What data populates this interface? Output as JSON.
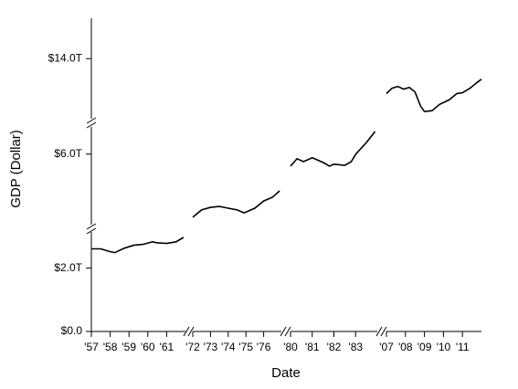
{
  "chart_data": {
    "type": "line",
    "x_label": "Date",
    "y_label": "GDP (Dollar)",
    "xlim": [
      [
        1957,
        1962
      ],
      [
        1972,
        1977
      ],
      [
        1980,
        1984
      ],
      [
        2007,
        2012
      ]
    ],
    "ylim": [
      [
        0,
        3.2
      ],
      [
        3.5,
        7.0
      ],
      [
        12.6,
        14.9
      ]
    ],
    "xticks": [
      {
        "value": 1957,
        "label": "'57"
      },
      {
        "value": 1958,
        "label": "'58"
      },
      {
        "value": 1959,
        "label": "'59"
      },
      {
        "value": 1960,
        "label": "'60"
      },
      {
        "value": 1961,
        "label": "'61"
      },
      {
        "value": 1972,
        "label": "'72"
      },
      {
        "value": 1973,
        "label": "'73"
      },
      {
        "value": 1974,
        "label": "'74"
      },
      {
        "value": 1975,
        "label": "'75"
      },
      {
        "value": 1976,
        "label": "'76"
      },
      {
        "value": 1980,
        "label": "'80"
      },
      {
        "value": 1981,
        "label": "'81"
      },
      {
        "value": 1982,
        "label": "'82"
      },
      {
        "value": 1983,
        "label": "'83"
      },
      {
        "value": 2007,
        "label": "'07"
      },
      {
        "value": 2008,
        "label": "'08"
      },
      {
        "value": 2009,
        "label": "'09"
      },
      {
        "value": 2010,
        "label": "'10"
      },
      {
        "value": 2011,
        "label": "'11"
      }
    ],
    "yticks": [
      {
        "value": 0,
        "label": "$0.0"
      },
      {
        "value": 2,
        "label": "$2.0T"
      },
      {
        "value": 6,
        "label": "$6.0T"
      },
      {
        "value": 14,
        "label": "$14.0T"
      }
    ],
    "color": "#000000",
    "x": [
      1957.0,
      1957.5,
      1958.0,
      1958.25,
      1958.75,
      1959.25,
      1959.75,
      1960.25,
      1960.5,
      1961.0,
      1961.5,
      1961.9,
      1972.0,
      1972.5,
      1973.0,
      1973.5,
      1974.0,
      1974.5,
      1974.9,
      1975.5,
      1976.0,
      1976.5,
      1976.9,
      1980.0,
      1980.3,
      1980.6,
      1981.0,
      1981.5,
      1981.8,
      1982.0,
      1982.5,
      1982.8,
      1983.0,
      1983.5,
      1983.9,
      2007.0,
      2007.3,
      2007.6,
      2007.9,
      2008.2,
      2008.5,
      2008.8,
      2009.0,
      2009.4,
      2009.8,
      2010.3,
      2010.7,
      2011.0,
      2011.4,
      2011.8,
      2012.0
    ],
    "values": [
      2.61,
      2.61,
      2.52,
      2.49,
      2.63,
      2.72,
      2.75,
      2.83,
      2.8,
      2.78,
      2.83,
      2.97,
      3.82,
      4.07,
      4.16,
      4.19,
      4.13,
      4.07,
      3.97,
      4.13,
      4.38,
      4.51,
      4.73,
      5.58,
      5.84,
      5.74,
      5.87,
      5.71,
      5.58,
      5.65,
      5.61,
      5.74,
      5.99,
      6.4,
      6.78,
      13.22,
      13.34,
      13.38,
      13.32,
      13.36,
      13.26,
      12.94,
      12.82,
      12.84,
      12.98,
      13.08,
      13.22,
      13.24,
      13.34,
      13.48,
      13.54
    ]
  }
}
